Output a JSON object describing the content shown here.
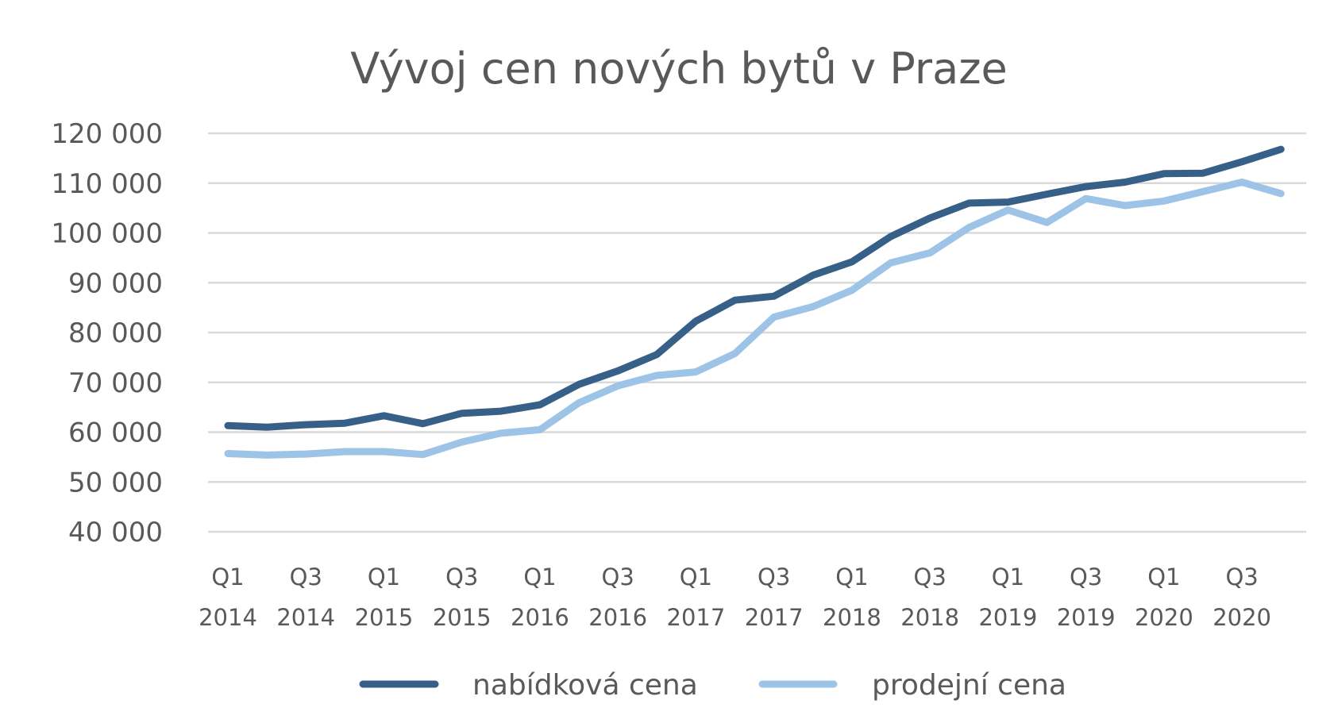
{
  "chart_data": {
    "type": "line",
    "title": "Vývoj cen nových bytů v Praze",
    "xlabel": "",
    "ylabel": "",
    "ylim": [
      40000,
      120000
    ],
    "yticks": [
      40000,
      50000,
      60000,
      70000,
      80000,
      90000,
      100000,
      110000,
      120000
    ],
    "ytick_labels": [
      "40 000",
      "50 000",
      "60 000",
      "70 000",
      "80 000",
      "90 000",
      "100 000",
      "110 000",
      "120 000"
    ],
    "grid": true,
    "legend_position": "bottom",
    "categories": [
      "Q1 2014",
      "Q2 2014",
      "Q3 2014",
      "Q4 2014",
      "Q1 2015",
      "Q2 2015",
      "Q3 2015",
      "Q4 2015",
      "Q1 2016",
      "Q2 2016",
      "Q3 2016",
      "Q4 2016",
      "Q1 2017",
      "Q2 2017",
      "Q3 2017",
      "Q4 2017",
      "Q1 2018",
      "Q2 2018",
      "Q3 2018",
      "Q4 2018",
      "Q1 2019",
      "Q2 2019",
      "Q3 2019",
      "Q4 2019",
      "Q1 2020",
      "Q2 2020",
      "Q3 2020",
      "Q4 2020"
    ],
    "xtick_labels": [
      {
        "index": 0,
        "line1": "Q1",
        "line2": "2014"
      },
      {
        "index": 2,
        "line1": "Q3",
        "line2": "2014"
      },
      {
        "index": 4,
        "line1": "Q1",
        "line2": "2015"
      },
      {
        "index": 6,
        "line1": "Q3",
        "line2": "2015"
      },
      {
        "index": 8,
        "line1": "Q1",
        "line2": "2016"
      },
      {
        "index": 10,
        "line1": "Q3",
        "line2": "2016"
      },
      {
        "index": 12,
        "line1": "Q1",
        "line2": "2017"
      },
      {
        "index": 14,
        "line1": "Q3",
        "line2": "2017"
      },
      {
        "index": 16,
        "line1": "Q1",
        "line2": "2018"
      },
      {
        "index": 18,
        "line1": "Q3",
        "line2": "2018"
      },
      {
        "index": 20,
        "line1": "Q1",
        "line2": "2019"
      },
      {
        "index": 22,
        "line1": "Q3",
        "line2": "2019"
      },
      {
        "index": 24,
        "line1": "Q1",
        "line2": "2020"
      },
      {
        "index": 26,
        "line1": "Q3",
        "line2": "2020"
      }
    ],
    "series": [
      {
        "name": "nabídková cena",
        "color": "#376089",
        "values": [
          61300,
          61000,
          61500,
          61800,
          63300,
          61700,
          63800,
          64200,
          65500,
          69600,
          72300,
          75600,
          82300,
          86500,
          87300,
          91500,
          94200,
          99300,
          103000,
          106000,
          106200,
          107800,
          109300,
          110200,
          111900,
          112000,
          114300,
          116800
        ]
      },
      {
        "name": "prodejní cena",
        "color": "#9dc3e6",
        "values": [
          55700,
          55400,
          55600,
          56100,
          56100,
          55500,
          58000,
          59800,
          60500,
          65900,
          69300,
          71400,
          72100,
          75800,
          83100,
          85200,
          88500,
          94000,
          96000,
          101100,
          104600,
          102100,
          106900,
          105500,
          106400,
          108300,
          110200,
          107900
        ]
      }
    ]
  }
}
